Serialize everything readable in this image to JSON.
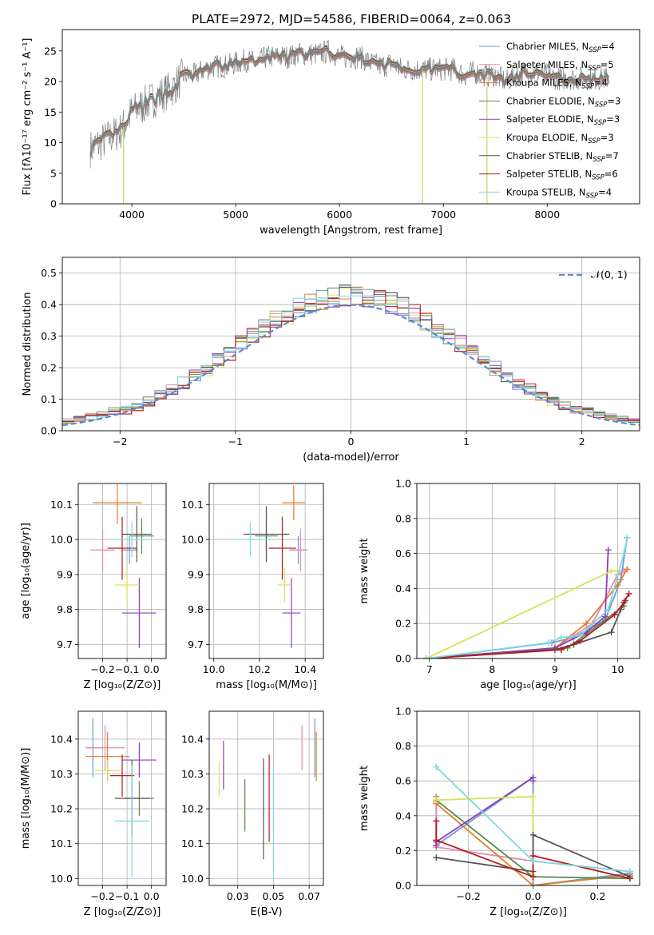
{
  "palette": [
    "#6f9bd4",
    "#e58ab4",
    "#e07f2c",
    "#5a8a4a",
    "#8b3fbb",
    "#d6e35a",
    "#555555",
    "#b31b1b",
    "#7fd8df"
  ],
  "chart_data": [
    {
      "id": "spectrum",
      "type": "line",
      "title": "PLATE=2972, MJD=54586, FIBERID=0064, z=0.063",
      "xlabel": "wavelength [Angstrom, rest frame]",
      "ylabel": "Flux [fλ10⁻¹⁷ erg cm⁻² s⁻¹ A⁻¹]",
      "xlim": [
        3330,
        8890
      ],
      "ylim": [
        0,
        28.5
      ],
      "xticks": [
        4000,
        5000,
        6000,
        7000,
        8000
      ],
      "yticks": [
        0,
        5,
        10,
        15,
        20,
        25
      ],
      "grid": false,
      "legend_position": "right",
      "data_color": "#808080",
      "continuum": [
        [
          3600,
          9
        ],
        [
          3700,
          10
        ],
        [
          3800,
          11
        ],
        [
          3900,
          12
        ],
        [
          4000,
          15
        ],
        [
          4100,
          16
        ],
        [
          4200,
          17
        ],
        [
          4300,
          18
        ],
        [
          4400,
          19
        ],
        [
          4500,
          21
        ],
        [
          4600,
          21
        ],
        [
          4700,
          22
        ],
        [
          4800,
          22.5
        ],
        [
          4900,
          22.5
        ],
        [
          5000,
          23
        ],
        [
          5100,
          23.5
        ],
        [
          5200,
          23
        ],
        [
          5300,
          24
        ],
        [
          5400,
          24
        ],
        [
          5500,
          24
        ],
        [
          5600,
          24.5
        ],
        [
          5700,
          24.5
        ],
        [
          5800,
          24.5
        ],
        [
          5900,
          25
        ],
        [
          6000,
          24
        ],
        [
          6100,
          24
        ],
        [
          6200,
          24
        ],
        [
          6300,
          23
        ],
        [
          6400,
          22.5
        ],
        [
          6500,
          23
        ],
        [
          6600,
          22
        ],
        [
          6700,
          22
        ],
        [
          6800,
          22
        ],
        [
          6900,
          22
        ],
        [
          7000,
          22
        ],
        [
          7100,
          22
        ],
        [
          7200,
          21
        ],
        [
          7300,
          21.5
        ],
        [
          7400,
          21
        ],
        [
          7500,
          21
        ],
        [
          7600,
          20
        ],
        [
          7700,
          21
        ],
        [
          7800,
          21.5
        ],
        [
          7900,
          21.5
        ],
        [
          8000,
          21
        ],
        [
          8100,
          20.5
        ],
        [
          8200,
          20.5
        ],
        [
          8300,
          20.5
        ],
        [
          8400,
          20.5
        ],
        [
          8500,
          20.5
        ],
        [
          8600,
          20.5
        ]
      ],
      "spikes": [
        [
          3920,
          0
        ],
        [
          6800,
          0
        ],
        [
          7420,
          0
        ]
      ],
      "legend": [
        {
          "label": "Chabrier MILES, N",
          "sub": "SSP",
          "tail": "=4"
        },
        {
          "label": "Salpeter MILES, N",
          "sub": "SSP",
          "tail": "=5"
        },
        {
          "label": "Kroupa MILES, N",
          "sub": "SSP",
          "tail": "=4"
        },
        {
          "label": "Chabrier ELODIE, N",
          "sub": "SSP",
          "tail": "=3"
        },
        {
          "label": "Salpeter ELODIE, N",
          "sub": "SSP",
          "tail": "=3"
        },
        {
          "label": "Kroupa ELODIE, N",
          "sub": "SSP",
          "tail": "=3"
        },
        {
          "label": "Chabrier STELIB, N",
          "sub": "SSP",
          "tail": "=7"
        },
        {
          "label": "Salpeter STELIB, N",
          "sub": "SSP",
          "tail": "=6"
        },
        {
          "label": "Kroupa STELIB, N",
          "sub": "SSP",
          "tail": "=4"
        }
      ]
    },
    {
      "id": "residuals",
      "type": "line",
      "xlabel": "(data-model)/error",
      "ylabel": "Normed distribution",
      "xlim": [
        -2.5,
        2.5
      ],
      "ylim": [
        0,
        0.55
      ],
      "xticks": [
        -2,
        -1,
        0,
        1,
        2
      ],
      "yticks": [
        0.0,
        0.1,
        0.2,
        0.3,
        0.4,
        0.5
      ],
      "grid": true,
      "bins": [
        -2.5,
        2.5,
        50
      ],
      "legend_position": "top-right",
      "gaussian": {
        "label": "𝒩(0, 1)",
        "color": "#5b8bd6",
        "mean": 0,
        "sigma": 1
      }
    },
    {
      "id": "age-vs-Z",
      "type": "scatter",
      "xlabel": "Z [log₁₀(Z/Z⊙)]",
      "ylabel": "age  [log₁₀(age/yr)]",
      "xlim": [
        -0.3,
        0.06
      ],
      "ylim": [
        9.66,
        10.16
      ],
      "xticks": [
        -0.2,
        -0.1,
        0.0
      ],
      "yticks": [
        9.7,
        9.8,
        9.9,
        10.0,
        10.1
      ],
      "grid": true,
      "points": [
        {
          "x": -0.09,
          "y": 9.97,
          "xerr": 0.03,
          "yerr": 0.04
        },
        {
          "x": -0.2,
          "y": 9.97,
          "xerr": 0.05,
          "yerr": 0.06
        },
        {
          "x": -0.14,
          "y": 10.105,
          "xerr": 0.1,
          "yerr": 0.06
        },
        {
          "x": -0.04,
          "y": 10.01,
          "xerr": 0.05,
          "yerr": 0.05
        },
        {
          "x": -0.05,
          "y": 9.79,
          "xerr": 0.07,
          "yerr": 0.1
        },
        {
          "x": -0.1,
          "y": 9.87,
          "xerr": 0.05,
          "yerr": 0.05
        },
        {
          "x": -0.06,
          "y": 10.015,
          "xerr": 0.06,
          "yerr": 0.08
        },
        {
          "x": -0.12,
          "y": 9.975,
          "xerr": 0.06,
          "yerr": 0.09
        },
        {
          "x": -0.08,
          "y": 10.0,
          "xerr": 0.07,
          "yerr": 0.05
        }
      ]
    },
    {
      "id": "age-vs-mass",
      "type": "scatter",
      "xlabel": "mass [log₁₀(M/M⊙)]",
      "ylabel": "",
      "xlim": [
        9.98,
        10.48
      ],
      "ylim": [
        9.66,
        10.16
      ],
      "xticks": [
        10.0,
        10.2,
        10.4
      ],
      "yticks": [
        9.7,
        9.8,
        9.9,
        10.0,
        10.1
      ],
      "grid": true,
      "points": [
        {
          "x": 10.37,
          "y": 9.97,
          "xerr": 0.04,
          "yerr": 0.04
        },
        {
          "x": 10.38,
          "y": 9.97,
          "xerr": 0.03,
          "yerr": 0.06
        },
        {
          "x": 10.35,
          "y": 10.105,
          "xerr": 0.05,
          "yerr": 0.05
        },
        {
          "x": 10.23,
          "y": 10.01,
          "xerr": 0.05,
          "yerr": 0.05
        },
        {
          "x": 10.34,
          "y": 9.79,
          "xerr": 0.04,
          "yerr": 0.1
        },
        {
          "x": 10.31,
          "y": 9.87,
          "xerr": 0.03,
          "yerr": 0.05
        },
        {
          "x": 10.23,
          "y": 10.015,
          "xerr": 0.1,
          "yerr": 0.08
        },
        {
          "x": 10.3,
          "y": 9.975,
          "xerr": 0.06,
          "yerr": 0.09
        },
        {
          "x": 10.16,
          "y": 10.0,
          "xerr": 0.09,
          "yerr": 0.05
        }
      ]
    },
    {
      "id": "weight-vs-age",
      "type": "line",
      "xlabel": "age  [log₁₀(age/yr)]",
      "ylabel": "mass weight",
      "xlim": [
        6.8,
        10.35
      ],
      "ylim": [
        0,
        1.0
      ],
      "xticks": [
        7,
        8,
        9,
        10
      ],
      "yticks": [
        0.0,
        0.2,
        0.4,
        0.6,
        0.8,
        1.0
      ],
      "grid": true,
      "series": [
        {
          "x": [
            6.95,
            8.95,
            9.3,
            9.8,
            10.05,
            10.15
          ],
          "y": [
            0.0,
            0.09,
            0.12,
            0.22,
            0.45,
            0.69
          ]
        },
        {
          "x": [
            6.95,
            9.0,
            9.6,
            10.0,
            10.1
          ],
          "y": [
            0.0,
            0.06,
            0.2,
            0.48,
            0.5
          ]
        },
        {
          "x": [
            6.95,
            9.0,
            9.5,
            10.0,
            10.15
          ],
          "y": [
            0.0,
            0.06,
            0.2,
            0.42,
            0.51
          ]
        },
        {
          "x": [
            6.95,
            9.2,
            9.5,
            10.1
          ],
          "y": [
            0.0,
            0.06,
            0.14,
            0.3
          ]
        },
        {
          "x": [
            6.95,
            9.0,
            9.5,
            9.8,
            9.85
          ],
          "y": [
            0.0,
            0.06,
            0.15,
            0.24,
            0.62
          ]
        },
        {
          "x": [
            6.95,
            9.9,
            10.0
          ],
          "y": [
            0.0,
            0.5,
            0.5
          ]
        },
        {
          "x": [
            6.95,
            9.0,
            9.3,
            9.9,
            10.05,
            10.12
          ],
          "y": [
            0.0,
            0.05,
            0.08,
            0.15,
            0.28,
            0.33
          ]
        },
        {
          "x": [
            6.95,
            9.1,
            9.4,
            9.95,
            10.1,
            10.18
          ],
          "y": [
            0.0,
            0.05,
            0.1,
            0.25,
            0.32,
            0.37
          ]
        },
        {
          "x": [
            6.95,
            8.9,
            9.1,
            9.4,
            9.85,
            10.1,
            10.15
          ],
          "y": [
            0.0,
            0.09,
            0.12,
            0.13,
            0.28,
            0.6,
            0.69
          ]
        }
      ]
    },
    {
      "id": "mass-vs-Z",
      "type": "scatter",
      "xlabel": "Z [log₁₀(Z/Z⊙)]",
      "ylabel": "mass [log₁₀(M/M⊙)]",
      "xlim": [
        -0.3,
        0.06
      ],
      "ylim": [
        9.98,
        10.48
      ],
      "xticks": [
        -0.2,
        -0.1,
        0.0
      ],
      "yticks": [
        10.0,
        10.1,
        10.2,
        10.3,
        10.4
      ],
      "grid": true,
      "points": [
        {
          "x": -0.24,
          "y": 10.375,
          "xerr": 0.03,
          "yerr": 0.085
        },
        {
          "x": -0.19,
          "y": 10.375,
          "xerr": 0.08,
          "yerr": 0.065
        },
        {
          "x": -0.18,
          "y": 10.35,
          "xerr": 0.09,
          "yerr": 0.07
        },
        {
          "x": -0.05,
          "y": 10.23,
          "xerr": 0.06,
          "yerr": 0.05
        },
        {
          "x": -0.05,
          "y": 10.34,
          "xerr": 0.07,
          "yerr": 0.05
        },
        {
          "x": -0.18,
          "y": 10.31,
          "xerr": 0.05,
          "yerr": 0.03
        },
        {
          "x": -0.08,
          "y": 10.23,
          "xerr": 0.07,
          "yerr": 0.11
        },
        {
          "x": -0.12,
          "y": 10.295,
          "xerr": 0.05,
          "yerr": 0.06
        },
        {
          "x": -0.08,
          "y": 10.165,
          "xerr": 0.07,
          "yerr": 0.16
        }
      ]
    },
    {
      "id": "mass-vs-ebv",
      "type": "scatter",
      "xlabel": "E(B-V)",
      "ylabel": "",
      "xlim": [
        0.005,
        0.085
      ],
      "ylim": [
        9.98,
        10.48
      ],
      "xticks": [
        0.025,
        0.05,
        0.075
      ],
      "yticks": [
        10.0,
        10.1,
        10.2,
        10.3,
        10.4
      ],
      "grid": true,
      "points": [
        {
          "x": 0.079,
          "y": 10.375,
          "yerr": 0.085
        },
        {
          "x": 0.07,
          "y": 10.375,
          "yerr": 0.065
        },
        {
          "x": 0.08,
          "y": 10.35,
          "yerr": 0.07
        },
        {
          "x": 0.03,
          "y": 10.21,
          "yerr": 0.075
        },
        {
          "x": 0.015,
          "y": 10.325,
          "yerr": 0.07
        },
        {
          "x": 0.012,
          "y": 10.285,
          "yerr": 0.05
        },
        {
          "x": 0.043,
          "y": 10.2,
          "yerr": 0.145
        },
        {
          "x": 0.047,
          "y": 10.23,
          "yerr": 0.125
        },
        {
          "x": 0.05,
          "y": 10.165,
          "yerr": 0.16
        }
      ]
    },
    {
      "id": "weight-vs-Z",
      "type": "line",
      "xlabel": "Z [log₁₀(Z/Z⊙)]",
      "ylabel": "mass weight",
      "xlim": [
        -0.36,
        0.33
      ],
      "ylim": [
        0,
        1.0
      ],
      "xticks": [
        -0.2,
        0.0,
        0.2
      ],
      "yticks": [
        0.0,
        0.2,
        0.4,
        0.6,
        0.8,
        1.0
      ],
      "grid": true,
      "series": [
        {
          "x": [
            -0.3,
            -0.3,
            0.0,
            0.0,
            0.3
          ],
          "y": [
            0.49,
            0.23,
            0.62,
            0.0,
            0.07
          ]
        },
        {
          "x": [
            -0.3,
            -0.3,
            0.0,
            0.3
          ],
          "y": [
            0.48,
            0.22,
            0.14,
            0.08
          ]
        },
        {
          "x": [
            -0.3,
            -0.3,
            0.0,
            0.3
          ],
          "y": [
            0.51,
            0.47,
            0.0,
            0.06
          ]
        },
        {
          "x": [
            -0.3,
            -0.3,
            0.0,
            0.3
          ],
          "y": [
            0.49,
            0.49,
            0.05,
            0.04
          ]
        },
        {
          "x": [
            -0.3,
            -0.3,
            0.0,
            0.0
          ],
          "y": [
            0.23,
            0.25,
            0.62,
            0.6
          ]
        },
        {
          "x": [
            -0.3,
            0.0,
            0.0
          ],
          "y": [
            0.49,
            0.51,
            0.06
          ]
        },
        {
          "x": [
            -0.3,
            0.0,
            0.0,
            0.3
          ],
          "y": [
            0.16,
            0.08,
            0.29,
            0.05
          ]
        },
        {
          "x": [
            -0.3,
            -0.3,
            0.0,
            0.0,
            0.3
          ],
          "y": [
            0.37,
            0.26,
            0.05,
            0.17,
            0.04
          ]
        },
        {
          "x": [
            -0.3,
            0.0,
            0.3
          ],
          "y": [
            0.68,
            0.14,
            0.08
          ]
        }
      ]
    }
  ]
}
